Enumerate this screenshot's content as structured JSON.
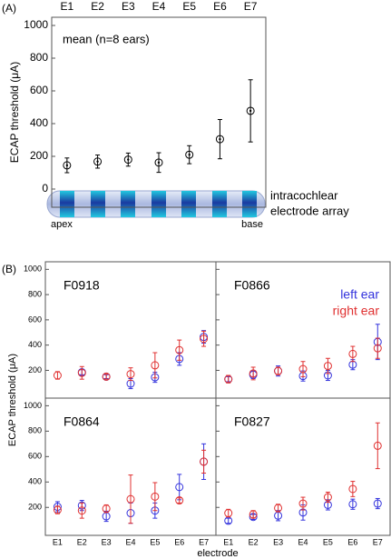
{
  "figure": {
    "panel_a_label": "(A)",
    "panel_b_label": "(B)",
    "array_label_1": "intracochlear",
    "array_label_2": "electrode array",
    "apex_label": "apex",
    "base_label": "base",
    "b_y_label": "ECAP threshold (μA)",
    "b_x_label": "electrode"
  },
  "chart_data": [
    {
      "type": "errorbar",
      "y_label": "ECAP threshold (μA)",
      "annotation": "mean (n=8 ears)",
      "categories": [
        "E1",
        "E2",
        "E3",
        "E4",
        "E5",
        "E6",
        "E7"
      ],
      "series": [
        {
          "color": "#000000",
          "values": [
            145,
            168,
            180,
            162,
            210,
            305,
            478
          ],
          "errors": [
            45,
            40,
            40,
            60,
            55,
            120,
            190
          ]
        }
      ],
      "ylim": [
        -100,
        1050
      ],
      "yticks": [
        0,
        200,
        400,
        600,
        800,
        1000
      ]
    },
    {
      "type": "errorbar",
      "title": "F0918",
      "series": [
        {
          "color": "#3333dd",
          "values": [
            null,
            185,
            150,
            95,
            145,
            290,
            465
          ],
          "errors": [
            null,
            20,
            15,
            40,
            40,
            50,
            50
          ]
        },
        {
          "color": "#e03030",
          "values": [
            160,
            180,
            150,
            170,
            240,
            360,
            450
          ],
          "errors": [
            30,
            50,
            20,
            50,
            100,
            80,
            60
          ]
        }
      ],
      "ylim": [
        -20,
        1060
      ],
      "yticks": [
        200,
        400,
        600,
        800,
        1000
      ]
    },
    {
      "type": "errorbar",
      "title": "F0866",
      "series": [
        {
          "name": "left ear",
          "color": "#3333dd",
          "values": [
            130,
            165,
            195,
            155,
            160,
            245,
            425
          ],
          "errors": [
            20,
            30,
            40,
            40,
            40,
            40,
            140
          ]
        },
        {
          "name": "right ear",
          "color": "#e03030",
          "values": [
            130,
            175,
            195,
            210,
            235,
            330,
            375
          ],
          "errors": [
            30,
            50,
            30,
            60,
            60,
            60,
            80
          ]
        }
      ],
      "ylim": [
        -20,
        1060
      ],
      "yticks": [
        200,
        400,
        600,
        800,
        1000
      ]
    },
    {
      "type": "errorbar",
      "title": "F0864",
      "categories": [
        "E1",
        "E2",
        "E3",
        "E4",
        "E5",
        "E6",
        "E7"
      ],
      "series": [
        {
          "color": "#3333dd",
          "values": [
            205,
            215,
            130,
            155,
            175,
            360,
            560
          ],
          "errors": [
            40,
            40,
            40,
            80,
            60,
            100,
            140
          ]
        },
        {
          "color": "#e03030",
          "values": [
            180,
            175,
            190,
            265,
            285,
            255,
            560
          ],
          "errors": [
            30,
            60,
            30,
            190,
            110,
            20,
            90
          ]
        }
      ],
      "ylim": [
        -20,
        1060
      ],
      "yticks": [
        200,
        400,
        600,
        800,
        1000
      ]
    },
    {
      "type": "errorbar",
      "title": "F0827",
      "categories": [
        "E1",
        "E2",
        "E3",
        "E4",
        "E5",
        "E6",
        "E7"
      ],
      "series": [
        {
          "color": "#3333dd",
          "values": [
            95,
            125,
            135,
            160,
            220,
            225,
            230
          ],
          "errors": [
            20,
            20,
            40,
            60,
            40,
            40,
            40
          ]
        },
        {
          "color": "#e03030",
          "values": [
            155,
            145,
            195,
            230,
            280,
            345,
            685
          ],
          "errors": [
            30,
            30,
            30,
            50,
            40,
            60,
            180
          ]
        }
      ],
      "ylim": [
        -20,
        1060
      ],
      "yticks": [
        200,
        400,
        600,
        800,
        1000
      ]
    }
  ]
}
